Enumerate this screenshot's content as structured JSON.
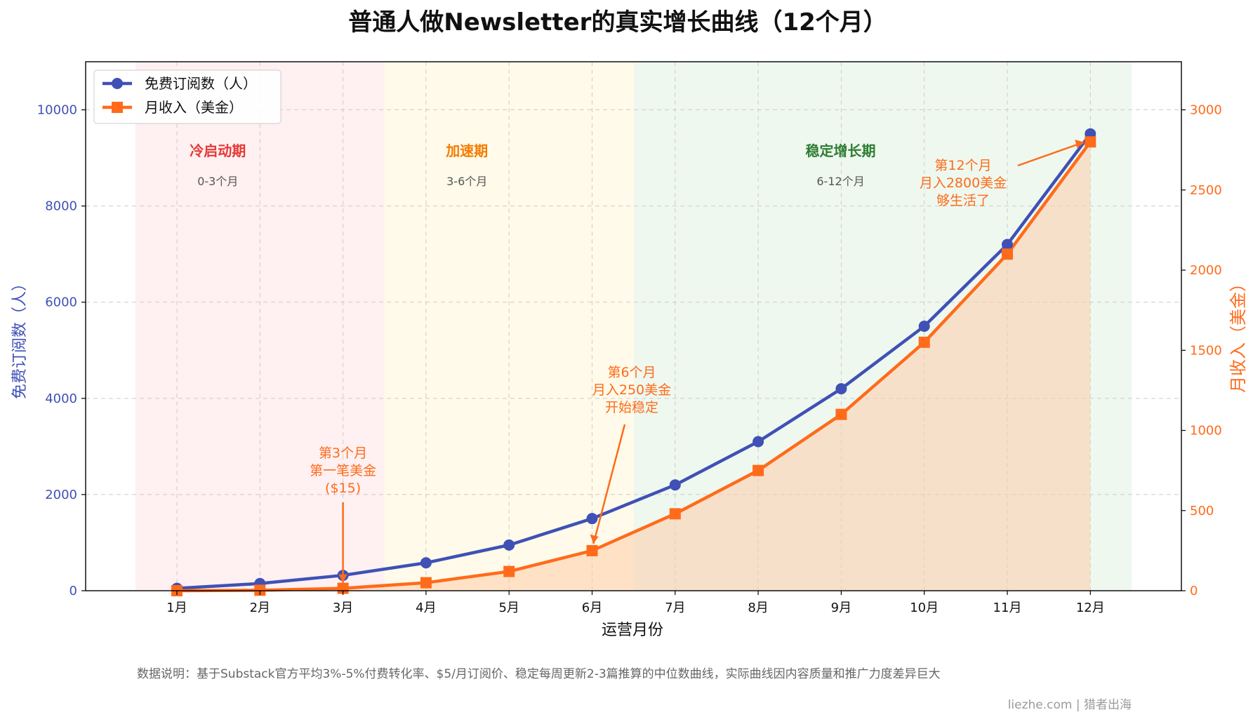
{
  "chart_data": {
    "type": "line",
    "title": "普通人做Newsletter的真实增长曲线（12个月）",
    "xlabel": "运营月份",
    "ylabel_left": "免费订阅数（人）",
    "ylabel_right": "月收入（美金）",
    "categories": [
      "1月",
      "2月",
      "3月",
      "4月",
      "5月",
      "6月",
      "7月",
      "8月",
      "9月",
      "10月",
      "11月",
      "12月"
    ],
    "ylim_left": [
      0,
      11000
    ],
    "ylim_right": [
      0,
      3300
    ],
    "yticks_left": [
      "0",
      "2000",
      "4000",
      "6000",
      "8000",
      "10000"
    ],
    "yticks_right": [
      "0",
      "500",
      "1000",
      "1500",
      "2000",
      "2500",
      "3000"
    ],
    "grid": true,
    "legend_position": "top-left",
    "series": [
      {
        "name": "免费订阅数（人）",
        "axis": "left",
        "marker": "circle",
        "color": "#3f51b5",
        "values": [
          50,
          150,
          320,
          580,
          950,
          1500,
          2200,
          3100,
          4200,
          5500,
          7200,
          9500
        ]
      },
      {
        "name": "月收入（美金）",
        "axis": "right",
        "marker": "square",
        "color": "#ff6b1a",
        "values": [
          0,
          3,
          15,
          50,
          120,
          250,
          480,
          750,
          1100,
          1550,
          2100,
          2800
        ]
      }
    ],
    "phases": [
      {
        "label": "冷启动期",
        "range": "0-3个月",
        "from_month": 0.5,
        "to_month": 3.5,
        "color": "#e53935",
        "fill": "#ffebee"
      },
      {
        "label": "加速期",
        "range": "3-6个月",
        "from_month": 3.5,
        "to_month": 6.5,
        "color": "#f57c00",
        "fill": "#fff8e1"
      },
      {
        "label": "稳定增长期",
        "range": "6-12个月",
        "from_month": 6.5,
        "to_month": 12.5,
        "color": "#2e7d32",
        "fill": "#e8f5e9"
      }
    ],
    "annotations": [
      {
        "lines": [
          "第3个月",
          "第一笔美金",
          "($15)"
        ],
        "month": 3,
        "revenue": 15
      },
      {
        "lines": [
          "第6个月",
          "月入250美金",
          "开始稳定"
        ],
        "month": 6,
        "revenue": 250
      },
      {
        "lines": [
          "第12个月",
          "月入2800美金",
          "够生活了"
        ],
        "month": 12,
        "revenue": 2800
      }
    ],
    "footnote": "数据说明：基于Substack官方平均3%-5%付费转化率、$5/月订阅价、稳定每周更新2-3篇推算的中位数曲线，实际曲线因内容质量和推广力度差异巨大"
  },
  "watermark": "liezhe.com | 猎者出海"
}
